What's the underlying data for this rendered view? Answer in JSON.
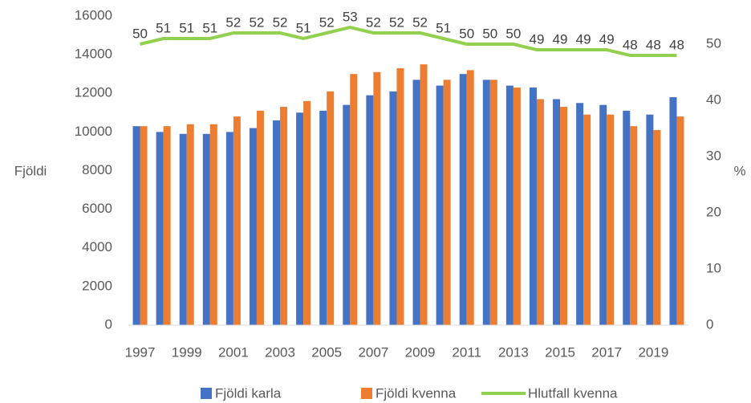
{
  "chart_data": {
    "type": "bar-line",
    "categories": [
      "1997",
      null,
      "1999",
      null,
      "2001",
      null,
      "2003",
      null,
      "2005",
      null,
      "2007",
      null,
      "2009",
      null,
      "2011",
      null,
      "2013",
      null,
      "2015",
      null,
      "2017",
      null,
      "2019",
      null
    ],
    "series": [
      {
        "name": "Fjöldi karla",
        "color": "#4472c4",
        "type": "bar",
        "values": [
          10300,
          10000,
          9900,
          9900,
          10000,
          10200,
          10600,
          11000,
          11100,
          11400,
          11900,
          12100,
          12700,
          12400,
          13000,
          12700,
          12400,
          12300,
          11700,
          11500,
          11400,
          11100,
          10900,
          11800
        ]
      },
      {
        "name": "Fjöldi kvenna",
        "color": "#ed7d31",
        "type": "bar",
        "values": [
          10300,
          10300,
          10400,
          10400,
          10800,
          11100,
          11300,
          11600,
          12100,
          13000,
          13100,
          13300,
          13500,
          12700,
          13200,
          12700,
          12300,
          11700,
          11300,
          10900,
          10900,
          10300,
          10100,
          10800
        ]
      },
      {
        "name": "Hlutfall kvenna",
        "color": "#92d050",
        "type": "line",
        "axis": "y2",
        "values": [
          50,
          51,
          51,
          51,
          52,
          52,
          52,
          51,
          52,
          53,
          52,
          52,
          52,
          51,
          50,
          50,
          50,
          49,
          49,
          49,
          49,
          48,
          48,
          48
        ]
      }
    ],
    "ylabel": "Fjöldi",
    "y2label": "%",
    "ylim": [
      0,
      16000
    ],
    "yticks": [
      0,
      2000,
      4000,
      6000,
      8000,
      10000,
      12000,
      14000,
      16000
    ],
    "y2lim": [
      0,
      55
    ],
    "y2ticks": [
      0,
      10,
      20,
      30,
      40,
      50
    ],
    "legend": "bottom"
  }
}
